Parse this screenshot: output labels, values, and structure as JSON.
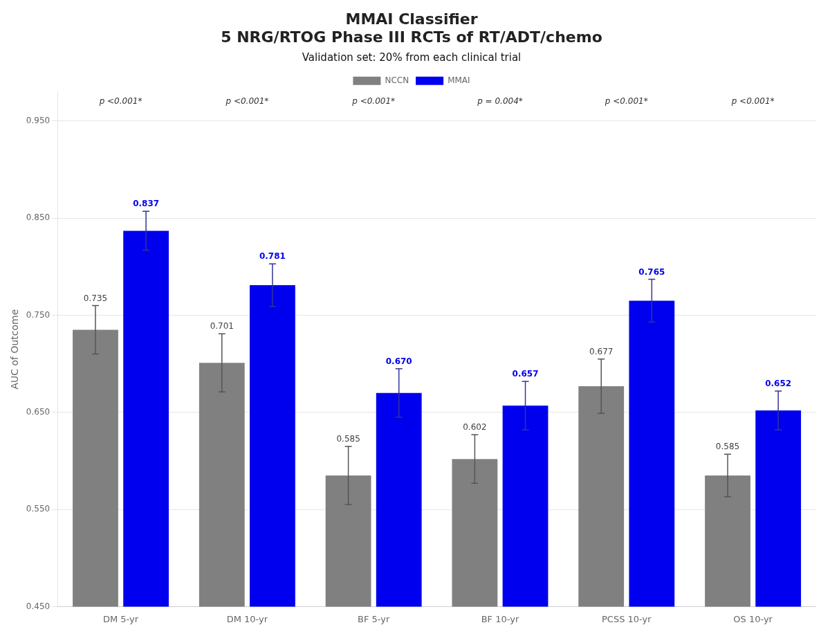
{
  "chart_data": {
    "type": "bar",
    "title": [
      "MMAI Classifier",
      "5 NRG/RTOG Phase III RCTs of RT/ADT/chemo"
    ],
    "subtitle": "Validation set: 20% from each clinical trial",
    "ylabel": "AUC of Outcome",
    "categories": [
      "DM 5-yr",
      "DM 10-yr",
      "BF 5-yr",
      "BF 10-yr",
      "PCSS 10-yr",
      "OS 10-yr"
    ],
    "series": [
      {
        "name": "NCCN",
        "color": "#808080",
        "values": [
          0.735,
          0.701,
          0.585,
          0.602,
          0.677,
          0.585
        ],
        "errors": [
          0.025,
          0.03,
          0.03,
          0.025,
          0.028,
          0.022
        ],
        "value_labels": [
          "0.735",
          "0.701",
          "0.585",
          "0.602",
          "0.677",
          "0.585"
        ]
      },
      {
        "name": "MMAI",
        "color": "#0000EE",
        "values": [
          0.837,
          0.781,
          0.67,
          0.657,
          0.765,
          0.652
        ],
        "errors": [
          0.02,
          0.022,
          0.025,
          0.025,
          0.022,
          0.02
        ],
        "value_labels": [
          "0.837",
          "0.781",
          "0.670",
          "0.657",
          "0.765",
          "0.652"
        ]
      }
    ],
    "annotations": [
      {
        "category": "DM 5-yr",
        "text": "p <0.001*"
      },
      {
        "category": "DM 10-yr",
        "text": "p <0.001*"
      },
      {
        "category": "BF 5-yr",
        "text": "p <0.001*"
      },
      {
        "category": "BF 10-yr",
        "text": "p = 0.004*"
      },
      {
        "category": "PCSS 10-yr",
        "text": "p <0.001*"
      },
      {
        "category": "OS 10-yr",
        "text": "p <0.001*"
      }
    ],
    "ylim": [
      0.45,
      0.98
    ],
    "yticks": [
      {
        "value": 0.45,
        "label": "0.450"
      },
      {
        "value": 0.55,
        "label": "0.550"
      },
      {
        "value": 0.65,
        "label": "0.650"
      },
      {
        "value": 0.75,
        "label": "0.750"
      },
      {
        "value": 0.85,
        "label": "0.850"
      },
      {
        "value": 0.95,
        "label": "0.950"
      }
    ],
    "grid": true,
    "legend": "top",
    "data_labels": true
  }
}
